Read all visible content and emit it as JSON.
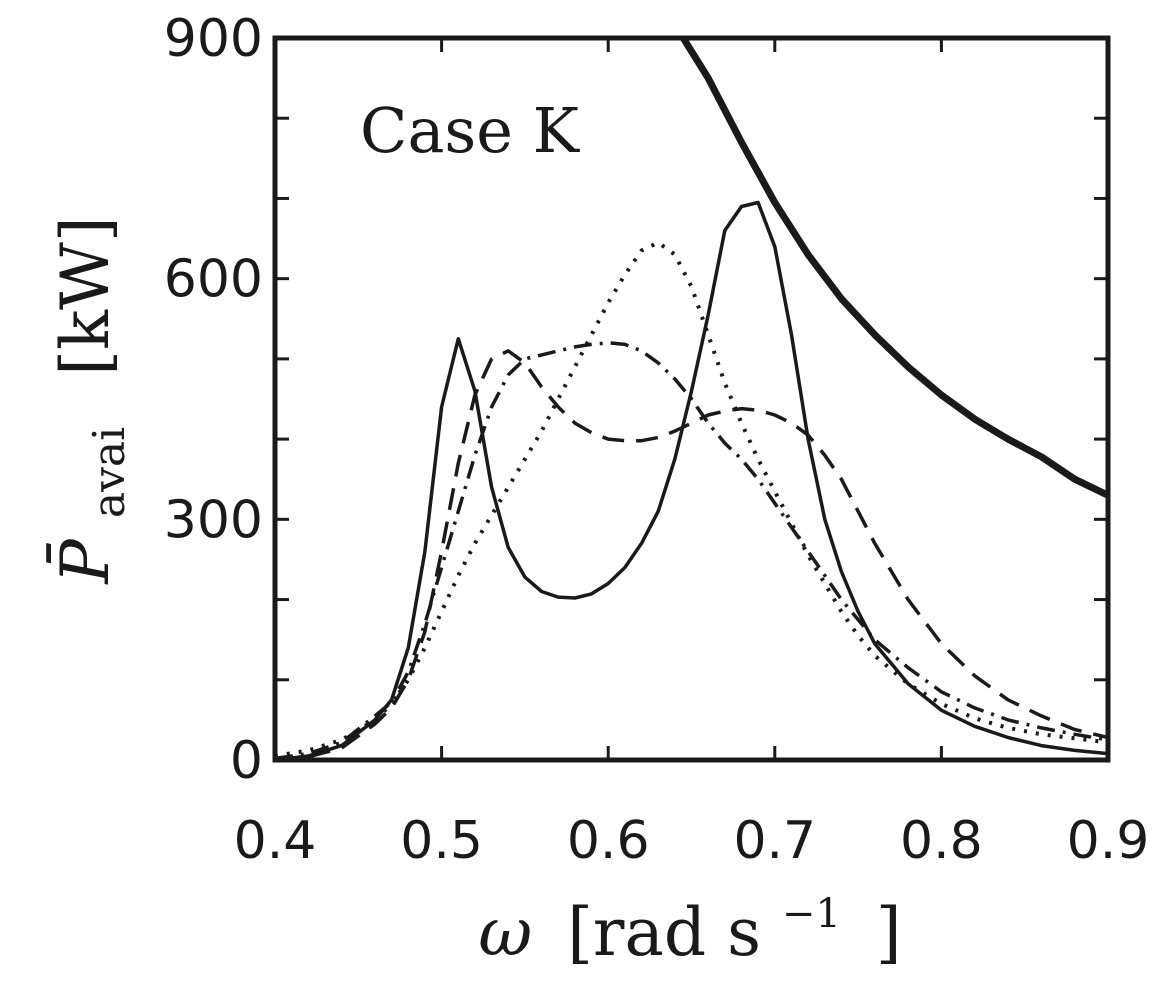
{
  "chart_data": {
    "type": "line",
    "title": "",
    "annotation": "Case K",
    "xlabel": {
      "symbol": "ω",
      "unit": "[rad s",
      "exponent": "−1",
      "close": "]"
    },
    "ylabel": {
      "symbol": "P̄",
      "subscript": "avai",
      "unit": "[kW]"
    },
    "xlim": [
      0.4,
      0.9
    ],
    "ylim": [
      0,
      900
    ],
    "xticks": [
      0.4,
      0.5,
      0.6,
      0.7,
      0.8,
      0.9
    ],
    "xtick_labels": [
      "0.4",
      "0.5",
      "0.6",
      "0.7",
      "0.8",
      "0.9"
    ],
    "yticks": [
      0,
      100,
      200,
      300,
      400,
      500,
      600,
      700,
      800,
      900
    ],
    "ytick_labels": [
      "0",
      "",
      "",
      "300",
      "",
      "",
      "600",
      "",
      "",
      "900"
    ],
    "grid": false,
    "series": [
      {
        "style": "thick-solid",
        "x": [
          0.645,
          0.66,
          0.68,
          0.7,
          0.72,
          0.74,
          0.76,
          0.78,
          0.8,
          0.82,
          0.84,
          0.86,
          0.88,
          0.9
        ],
        "y": [
          900,
          850,
          770,
          695,
          630,
          575,
          530,
          490,
          455,
          425,
          400,
          378,
          350,
          330
        ]
      },
      {
        "style": "solid",
        "x": [
          0.4,
          0.42,
          0.44,
          0.46,
          0.47,
          0.48,
          0.49,
          0.5,
          0.51,
          0.52,
          0.53,
          0.54,
          0.55,
          0.56,
          0.57,
          0.58,
          0.59,
          0.6,
          0.61,
          0.62,
          0.63,
          0.64,
          0.65,
          0.66,
          0.67,
          0.68,
          0.69,
          0.7,
          0.71,
          0.72,
          0.73,
          0.74,
          0.75,
          0.76,
          0.78,
          0.8,
          0.82,
          0.84,
          0.86,
          0.88,
          0.9
        ],
        "y": [
          0,
          5,
          18,
          50,
          75,
          140,
          260,
          440,
          525,
          460,
          340,
          265,
          228,
          210,
          203,
          202,
          207,
          220,
          240,
          270,
          310,
          375,
          460,
          555,
          660,
          690,
          695,
          640,
          530,
          400,
          300,
          235,
          185,
          145,
          95,
          62,
          42,
          28,
          18,
          12,
          8
        ]
      },
      {
        "style": "dashed",
        "x": [
          0.4,
          0.42,
          0.44,
          0.46,
          0.47,
          0.48,
          0.49,
          0.5,
          0.51,
          0.52,
          0.53,
          0.54,
          0.55,
          0.56,
          0.57,
          0.58,
          0.59,
          0.6,
          0.61,
          0.62,
          0.63,
          0.64,
          0.65,
          0.66,
          0.67,
          0.68,
          0.69,
          0.7,
          0.71,
          0.72,
          0.73,
          0.74,
          0.75,
          0.76,
          0.78,
          0.8,
          0.82,
          0.84,
          0.86,
          0.88,
          0.9
        ],
        "y": [
          0,
          4,
          15,
          45,
          65,
          100,
          160,
          260,
          370,
          455,
          500,
          510,
          495,
          465,
          440,
          420,
          408,
          400,
          398,
          398,
          402,
          410,
          420,
          430,
          435,
          438,
          436,
          430,
          420,
          405,
          380,
          350,
          310,
          270,
          200,
          145,
          105,
          75,
          55,
          38,
          28
        ]
      },
      {
        "style": "dash-dot",
        "x": [
          0.4,
          0.42,
          0.44,
          0.46,
          0.47,
          0.48,
          0.49,
          0.5,
          0.51,
          0.52,
          0.53,
          0.54,
          0.55,
          0.56,
          0.57,
          0.58,
          0.59,
          0.6,
          0.61,
          0.62,
          0.63,
          0.64,
          0.65,
          0.66,
          0.67,
          0.68,
          0.69,
          0.7,
          0.71,
          0.72,
          0.73,
          0.74,
          0.75,
          0.76,
          0.78,
          0.8,
          0.82,
          0.84,
          0.86,
          0.88,
          0.9
        ],
        "y": [
          2,
          8,
          22,
          55,
          72,
          110,
          170,
          240,
          310,
          380,
          440,
          480,
          500,
          505,
          510,
          515,
          518,
          520,
          518,
          510,
          495,
          475,
          450,
          420,
          395,
          375,
          350,
          320,
          290,
          260,
          230,
          200,
          175,
          150,
          115,
          85,
          65,
          50,
          40,
          32,
          25
        ]
      },
      {
        "style": "dotted",
        "x": [
          0.4,
          0.42,
          0.44,
          0.46,
          0.47,
          0.48,
          0.49,
          0.5,
          0.51,
          0.52,
          0.53,
          0.54,
          0.55,
          0.56,
          0.57,
          0.58,
          0.59,
          0.6,
          0.61,
          0.62,
          0.63,
          0.64,
          0.65,
          0.66,
          0.67,
          0.68,
          0.69,
          0.7,
          0.71,
          0.72,
          0.73,
          0.74,
          0.75,
          0.76,
          0.78,
          0.8,
          0.82,
          0.84,
          0.86,
          0.88,
          0.9
        ],
        "y": [
          5,
          12,
          25,
          50,
          70,
          100,
          140,
          185,
          230,
          270,
          305,
          340,
          375,
          410,
          450,
          490,
          530,
          570,
          605,
          635,
          645,
          630,
          590,
          530,
          470,
          420,
          375,
          335,
          295,
          255,
          220,
          185,
          155,
          130,
          95,
          70,
          52,
          40,
          32,
          27,
          22
        ]
      }
    ]
  }
}
